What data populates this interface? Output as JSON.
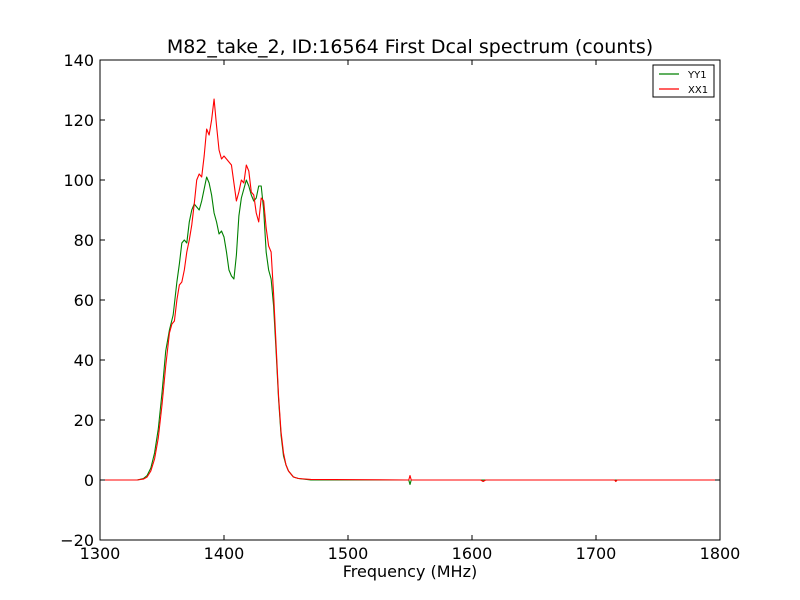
{
  "chart_data": {
    "type": "line",
    "title": "M82_take_2, ID:16564 First Dcal spectrum (counts)",
    "xlabel": "Frequency (MHz)",
    "ylabel": "",
    "xlim": [
      1300,
      1800
    ],
    "ylim": [
      -20,
      140
    ],
    "xticks": [
      1300,
      1400,
      1500,
      1600,
      1700,
      1800
    ],
    "yticks": [
      -20,
      0,
      20,
      40,
      60,
      80,
      100,
      120,
      140
    ],
    "grid": false,
    "legend_position": "top-right",
    "series": [
      {
        "name": "YY1",
        "color": "#008000",
        "points": [
          [
            1300,
            0
          ],
          [
            1320,
            0
          ],
          [
            1330,
            0
          ],
          [
            1335,
            0.5
          ],
          [
            1338,
            1.5
          ],
          [
            1341,
            4
          ],
          [
            1344,
            9
          ],
          [
            1347,
            17
          ],
          [
            1350,
            29
          ],
          [
            1353,
            43
          ],
          [
            1356,
            50
          ],
          [
            1359,
            55
          ],
          [
            1362,
            66
          ],
          [
            1364,
            72
          ],
          [
            1366,
            79
          ],
          [
            1368,
            80
          ],
          [
            1370,
            79
          ],
          [
            1372,
            86
          ],
          [
            1374,
            90
          ],
          [
            1376,
            92
          ],
          [
            1378,
            91
          ],
          [
            1380,
            90
          ],
          [
            1382,
            93
          ],
          [
            1384,
            97
          ],
          [
            1386,
            101
          ],
          [
            1388,
            99
          ],
          [
            1390,
            95
          ],
          [
            1392,
            89
          ],
          [
            1394,
            86
          ],
          [
            1396,
            82
          ],
          [
            1398,
            83
          ],
          [
            1400,
            81
          ],
          [
            1402,
            76
          ],
          [
            1404,
            70
          ],
          [
            1406,
            68
          ],
          [
            1408,
            67
          ],
          [
            1410,
            75
          ],
          [
            1412,
            88
          ],
          [
            1414,
            94
          ],
          [
            1416,
            97
          ],
          [
            1418,
            100
          ],
          [
            1420,
            98
          ],
          [
            1422,
            95
          ],
          [
            1424,
            93
          ],
          [
            1426,
            94
          ],
          [
            1428,
            98
          ],
          [
            1430,
            98
          ],
          [
            1432,
            90
          ],
          [
            1434,
            76
          ],
          [
            1436,
            70
          ],
          [
            1438,
            67
          ],
          [
            1440,
            58
          ],
          [
            1442,
            43
          ],
          [
            1444,
            27
          ],
          [
            1446,
            15
          ],
          [
            1448,
            8
          ],
          [
            1450,
            5
          ],
          [
            1452,
            3
          ],
          [
            1454,
            2
          ],
          [
            1456,
            1
          ],
          [
            1460,
            0.5
          ],
          [
            1470,
            0
          ],
          [
            1549,
            0
          ],
          [
            1550,
            -1.5
          ],
          [
            1551,
            0
          ],
          [
            1600,
            0
          ],
          [
            1700,
            0
          ],
          [
            1800,
            0
          ]
        ]
      },
      {
        "name": "XX1",
        "color": "#ff0000",
        "points": [
          [
            1300,
            0
          ],
          [
            1320,
            0
          ],
          [
            1330,
            0
          ],
          [
            1335,
            0.3
          ],
          [
            1338,
            1
          ],
          [
            1341,
            3
          ],
          [
            1344,
            7
          ],
          [
            1347,
            14
          ],
          [
            1350,
            25
          ],
          [
            1353,
            38
          ],
          [
            1356,
            49
          ],
          [
            1358,
            52
          ],
          [
            1360,
            53
          ],
          [
            1362,
            60
          ],
          [
            1364,
            65
          ],
          [
            1366,
            66
          ],
          [
            1368,
            70
          ],
          [
            1370,
            76
          ],
          [
            1372,
            80
          ],
          [
            1374,
            85
          ],
          [
            1376,
            92
          ],
          [
            1378,
            100
          ],
          [
            1380,
            102
          ],
          [
            1382,
            101
          ],
          [
            1384,
            108
          ],
          [
            1386,
            117
          ],
          [
            1388,
            115
          ],
          [
            1390,
            120
          ],
          [
            1392,
            127
          ],
          [
            1394,
            118
          ],
          [
            1396,
            110
          ],
          [
            1398,
            107
          ],
          [
            1400,
            108
          ],
          [
            1402,
            107
          ],
          [
            1404,
            106
          ],
          [
            1406,
            105
          ],
          [
            1408,
            99
          ],
          [
            1410,
            93
          ],
          [
            1412,
            96
          ],
          [
            1414,
            100
          ],
          [
            1416,
            99
          ],
          [
            1418,
            105
          ],
          [
            1420,
            103
          ],
          [
            1422,
            96
          ],
          [
            1424,
            95
          ],
          [
            1426,
            89
          ],
          [
            1428,
            86
          ],
          [
            1430,
            94
          ],
          [
            1432,
            93
          ],
          [
            1434,
            84
          ],
          [
            1436,
            78
          ],
          [
            1438,
            76
          ],
          [
            1440,
            62
          ],
          [
            1442,
            45
          ],
          [
            1444,
            28
          ],
          [
            1446,
            16
          ],
          [
            1448,
            9
          ],
          [
            1450,
            5
          ],
          [
            1452,
            3
          ],
          [
            1454,
            2
          ],
          [
            1456,
            1
          ],
          [
            1460,
            0.5
          ],
          [
            1470,
            0.2
          ],
          [
            1549,
            0
          ],
          [
            1550,
            1.5
          ],
          [
            1551,
            0
          ],
          [
            1607,
            0
          ],
          [
            1609,
            -0.5
          ],
          [
            1611,
            0
          ],
          [
            1715,
            0
          ],
          [
            1716,
            -0.5
          ],
          [
            1717,
            0
          ],
          [
            1800,
            0
          ]
        ]
      }
    ]
  }
}
